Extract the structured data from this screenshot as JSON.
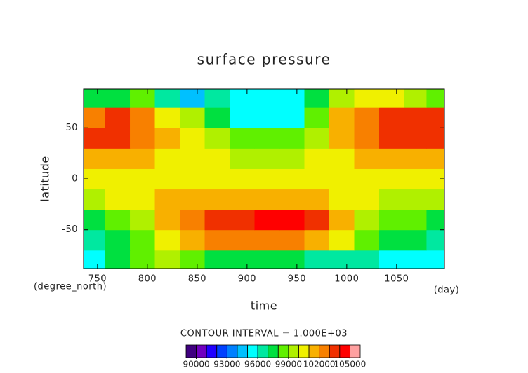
{
  "chart_data": {
    "type": "heatmap",
    "title": "surface pressure",
    "x_label": "time",
    "y_label": "latitude",
    "x_unit": "(day)",
    "y_unit": "(degree_north)",
    "x": [
      745,
      770,
      795,
      820,
      845,
      870,
      895,
      920,
      945,
      970,
      995,
      1020,
      1045,
      1070,
      1090
    ],
    "y": [
      -80,
      -60,
      -40,
      -20,
      0,
      20,
      40,
      60,
      80
    ],
    "z": [
      [
        95500,
        97000,
        98000,
        99000,
        98000,
        97500,
        97500,
        97000,
        97000,
        96500,
        96500,
        96000,
        95500,
        95500,
        95000
      ],
      [
        96000,
        97000,
        98500,
        100500,
        101500,
        102000,
        102500,
        102500,
        102500,
        101500,
        100000,
        98500,
        97500,
        97000,
        96500
      ],
      [
        97500,
        98000,
        99500,
        101500,
        102500,
        103500,
        103500,
        104500,
        104500,
        103500,
        101000,
        99500,
        98500,
        98000,
        97500
      ],
      [
        99500,
        100000,
        100500,
        101000,
        101000,
        101500,
        101500,
        101500,
        101500,
        101000,
        100500,
        100000,
        99500,
        99500,
        99500
      ],
      [
        100500,
        100500,
        100500,
        100500,
        100500,
        100500,
        100500,
        100500,
        100500,
        100500,
        100500,
        100500,
        100500,
        100500,
        100500
      ],
      [
        101500,
        101500,
        101000,
        100500,
        100500,
        100000,
        99500,
        99500,
        99500,
        100000,
        100500,
        101000,
        101500,
        101500,
        101500
      ],
      [
        103500,
        103500,
        102500,
        101000,
        100500,
        99500,
        98500,
        98000,
        98000,
        99500,
        101500,
        102500,
        103500,
        103500,
        103500
      ],
      [
        102500,
        103500,
        102500,
        100500,
        99500,
        97500,
        95500,
        95500,
        95500,
        98000,
        101500,
        102000,
        103000,
        103500,
        103500
      ],
      [
        97000,
        97500,
        98000,
        96000,
        94000,
        96000,
        95500,
        95500,
        95500,
        97000,
        99500,
        100500,
        100000,
        99000,
        98500
      ]
    ],
    "xlim": [
      736,
      1098
    ],
    "ylim": [
      -88,
      88
    ],
    "xticks": [
      750,
      800,
      850,
      900,
      950,
      1000,
      1050
    ],
    "yticks": [
      -50,
      0,
      50
    ],
    "colorbar": {
      "title": "CONTOUR INTERVAL = 1.000E+03",
      "lim": [
        89000,
        106000
      ],
      "ticks": [
        90000,
        93000,
        96000,
        99000,
        102000,
        105000
      ],
      "colors": [
        "#400080",
        "#7000c0",
        "#2000ff",
        "#0040ff",
        "#0080ff",
        "#00c0ff",
        "#00ffff",
        "#00e8a0",
        "#00e040",
        "#60f000",
        "#b0f000",
        "#f0f000",
        "#f8b000",
        "#f88000",
        "#f03000",
        "#ff0000",
        "#ffa0a0"
      ]
    }
  }
}
